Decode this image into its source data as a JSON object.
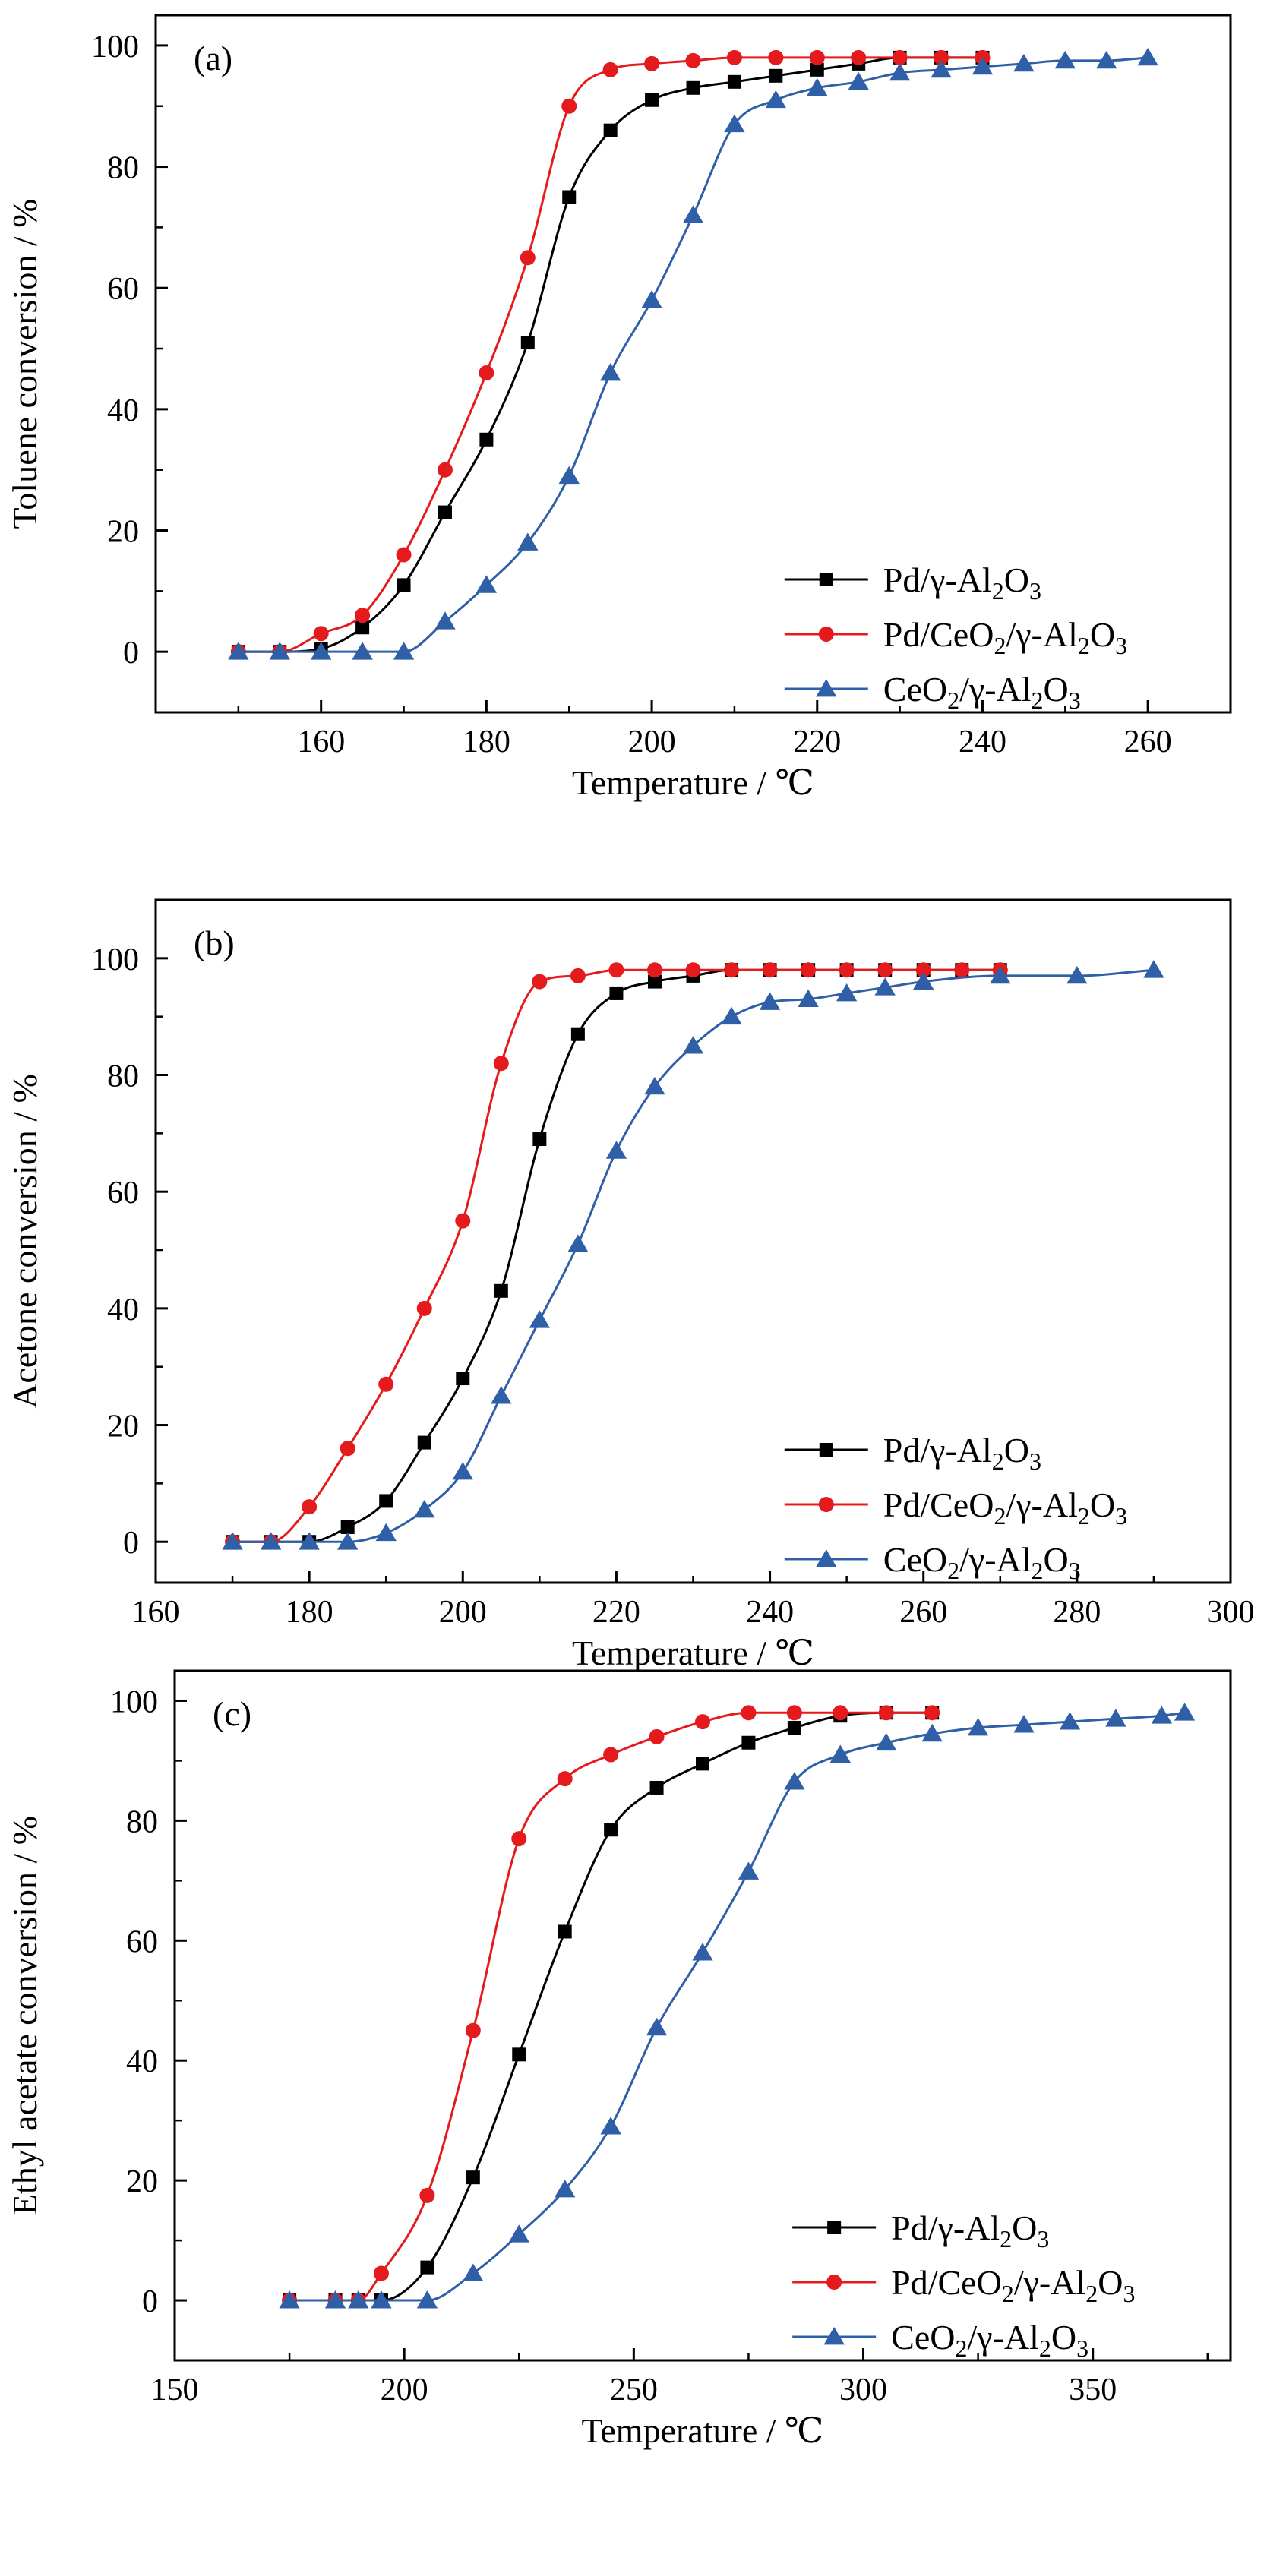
{
  "figure": {
    "title": ""
  },
  "chart_data": [
    {
      "type": "line",
      "panel_label": "(a)",
      "xlabel": "Temperature / ℃",
      "ylabel": "Toluene conversion / %",
      "xlim": [
        140,
        270
      ],
      "ylim": [
        -10,
        105
      ],
      "xticks": [
        160,
        180,
        200,
        220,
        240,
        260
      ],
      "yticks": [
        0,
        20,
        40,
        60,
        80,
        100
      ],
      "legend_position": "lower-right",
      "series": [
        {
          "name": "Pd/γ-Al2O3",
          "color": "#000000",
          "marker": "square",
          "x": [
            150,
            155,
            160,
            165,
            170,
            175,
            180,
            185,
            190,
            195,
            200,
            205,
            210,
            215,
            220,
            225,
            230,
            235,
            240
          ],
          "y": [
            0,
            0,
            0.5,
            4,
            11,
            23,
            35,
            51,
            75,
            86,
            91,
            93,
            94,
            95,
            96,
            97,
            98,
            98,
            98
          ]
        },
        {
          "name": "Pd/CeO2/γ-Al2O3",
          "color": "#e41a1c",
          "marker": "circle",
          "x": [
            150,
            155,
            160,
            165,
            170,
            175,
            180,
            185,
            190,
            195,
            200,
            205,
            210,
            215,
            220,
            225,
            230,
            235,
            240
          ],
          "y": [
            0,
            0,
            3,
            6,
            16,
            30,
            46,
            65,
            90,
            96,
            97,
            97.5,
            98,
            98,
            98,
            98,
            98,
            98,
            98
          ]
        },
        {
          "name": "CeO2/γ-Al2O3",
          "color": "#2f5fa7",
          "marker": "triangle",
          "x": [
            150,
            155,
            160,
            165,
            170,
            175,
            180,
            185,
            190,
            195,
            200,
            205,
            210,
            215,
            220,
            225,
            230,
            235,
            240,
            245,
            250,
            255,
            260
          ],
          "y": [
            0,
            0,
            0,
            0,
            0,
            5,
            11,
            18,
            29,
            46,
            58,
            72,
            87,
            91,
            93,
            94,
            95.5,
            96,
            96.5,
            97,
            97.5,
            97.5,
            98
          ]
        }
      ]
    },
    {
      "type": "line",
      "panel_label": "(b)",
      "xlabel": "Temperature / ℃",
      "ylabel": "Acetone conversion / %",
      "xlim": [
        160,
        300
      ],
      "ylim": [
        -7,
        110
      ],
      "xticks": [
        160,
        180,
        200,
        220,
        240,
        260,
        280,
        300
      ],
      "yticks": [
        0,
        20,
        40,
        60,
        80,
        100
      ],
      "legend_position": "lower-right",
      "series": [
        {
          "name": "Pd/γ-Al2O3",
          "color": "#000000",
          "marker": "square",
          "x": [
            170,
            175,
            180,
            185,
            190,
            195,
            200,
            205,
            210,
            215,
            220,
            225,
            230,
            235,
            240,
            245,
            250,
            255,
            260,
            265,
            270
          ],
          "y": [
            0,
            0,
            0,
            2.5,
            7,
            17,
            28,
            43,
            69,
            87,
            94,
            96,
            97,
            98,
            98,
            98,
            98,
            98,
            98,
            98,
            98
          ]
        },
        {
          "name": "Pd/CeO2/γ-Al2O3",
          "color": "#e41a1c",
          "marker": "circle",
          "x": [
            170,
            175,
            180,
            185,
            190,
            195,
            200,
            205,
            210,
            215,
            220,
            225,
            230,
            235,
            240,
            245,
            250,
            255,
            260,
            265,
            270
          ],
          "y": [
            0,
            0,
            6,
            16,
            27,
            40,
            55,
            82,
            96,
            97,
            98,
            98,
            98,
            98,
            98,
            98,
            98,
            98,
            98,
            98,
            98
          ]
        },
        {
          "name": "CeO2/γ-Al2O3",
          "color": "#2f5fa7",
          "marker": "triangle",
          "x": [
            170,
            175,
            180,
            185,
            190,
            195,
            200,
            205,
            210,
            215,
            220,
            225,
            230,
            235,
            240,
            245,
            250,
            255,
            260,
            270,
            280,
            290
          ],
          "y": [
            0,
            0,
            0,
            0,
            1.5,
            5.5,
            12,
            25,
            38,
            51,
            67,
            78,
            85,
            90,
            92.5,
            93,
            94,
            95,
            96,
            97,
            97,
            98
          ]
        }
      ]
    },
    {
      "type": "line",
      "panel_label": "(c)",
      "xlabel": "Temperature / ℃",
      "ylabel": "Ethyl acetate conversion / %",
      "xlim": [
        150,
        380
      ],
      "ylim": [
        -10,
        105
      ],
      "xticks": [
        150,
        200,
        250,
        300,
        350
      ],
      "yticks": [
        0,
        20,
        40,
        60,
        80,
        100
      ],
      "legend_position": "lower-right",
      "series": [
        {
          "name": "Pd/γ-Al2O3",
          "color": "#000000",
          "marker": "square",
          "x": [
            175,
            185,
            190,
            195,
            205,
            215,
            225,
            235,
            245,
            255,
            265,
            275,
            285,
            295,
            305,
            315
          ],
          "y": [
            0,
            0,
            0,
            0,
            5.5,
            20.5,
            41,
            61.5,
            78.5,
            85.5,
            89.5,
            93,
            95.5,
            97.5,
            98,
            98
          ]
        },
        {
          "name": "Pd/CeO2/γ-Al2O3",
          "color": "#e41a1c",
          "marker": "circle",
          "x": [
            175,
            185,
            190,
            195,
            205,
            215,
            225,
            235,
            245,
            255,
            265,
            275,
            285,
            295,
            305,
            315
          ],
          "y": [
            0,
            0,
            0,
            4.5,
            17.5,
            45,
            77,
            87,
            91,
            94,
            96.5,
            98,
            98,
            98,
            98,
            98
          ]
        },
        {
          "name": "CeO2/γ-Al2O3",
          "color": "#2f5fa7",
          "marker": "triangle",
          "x": [
            175,
            185,
            190,
            195,
            205,
            215,
            225,
            235,
            245,
            255,
            265,
            275,
            285,
            295,
            305,
            315,
            325,
            335,
            345,
            355,
            365,
            370
          ],
          "y": [
            0,
            0,
            0,
            0,
            0,
            4.5,
            11,
            18.5,
            29,
            45.5,
            58,
            71.5,
            86.5,
            91,
            93,
            94.5,
            95.5,
            96,
            96.5,
            97,
            97.5,
            98
          ]
        }
      ]
    }
  ]
}
